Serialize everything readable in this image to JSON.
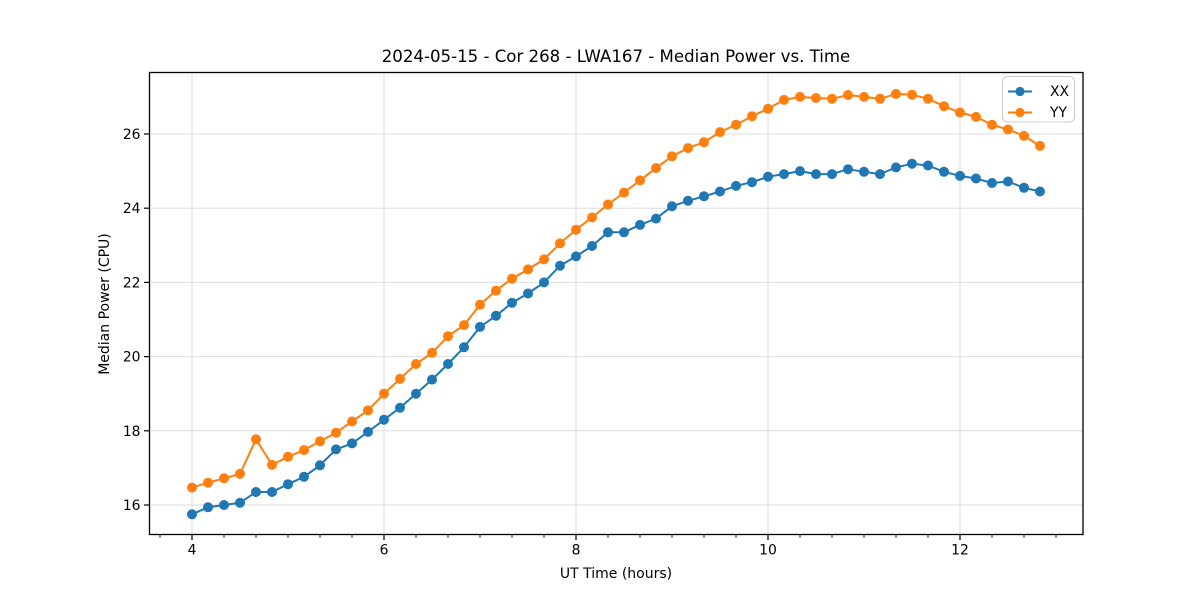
{
  "figure": {
    "title": "2024-05-15 - Cor 268 - LWA167 - Median Power vs. Time"
  },
  "chart_data": {
    "type": "line",
    "title": "2024-05-15 - Cor 268 - LWA167 - Median Power vs. Time",
    "xlabel": "UT Time (hours)",
    "ylabel": "Median Power (CPU)",
    "xlim": [
      3.558,
      13.275
    ],
    "ylim": [
      15.19,
      27.64
    ],
    "x_ticks": [
      4,
      6,
      8,
      10,
      12
    ],
    "y_ticks": [
      16,
      18,
      20,
      22,
      24,
      26
    ],
    "x_minor_step": 0.3333,
    "grid": true,
    "grid_color": "#dddddd",
    "background": "#ffffff",
    "legend_position": "upper right",
    "marker": "o",
    "x": [
      4.0,
      4.167,
      4.333,
      4.5,
      4.667,
      4.833,
      5.0,
      5.167,
      5.333,
      5.5,
      5.667,
      5.833,
      6.0,
      6.167,
      6.333,
      6.5,
      6.667,
      6.833,
      7.0,
      7.167,
      7.333,
      7.5,
      7.667,
      7.833,
      8.0,
      8.167,
      8.333,
      8.5,
      8.667,
      8.833,
      9.0,
      9.167,
      9.333,
      9.5,
      9.667,
      9.833,
      10.0,
      10.167,
      10.333,
      10.5,
      10.667,
      10.833,
      11.0,
      11.167,
      11.333,
      11.5,
      11.667,
      11.833,
      12.0,
      12.167,
      12.333,
      12.5,
      12.667,
      12.833
    ],
    "series": [
      {
        "name": "XX",
        "color": "#1f77b4",
        "values": [
          15.75,
          15.94,
          16.0,
          16.06,
          16.35,
          16.35,
          16.56,
          16.76,
          17.07,
          17.5,
          17.66,
          17.97,
          18.3,
          18.62,
          19.0,
          19.38,
          19.8,
          20.25,
          20.8,
          21.1,
          21.45,
          21.7,
          22.0,
          22.45,
          22.7,
          22.98,
          23.35,
          23.35,
          23.55,
          23.72,
          24.05,
          24.2,
          24.32,
          24.45,
          24.6,
          24.7,
          24.85,
          24.92,
          25.0,
          24.92,
          24.92,
          25.05,
          24.98,
          24.92,
          25.1,
          25.2,
          25.15,
          24.98,
          24.87,
          24.8,
          24.68,
          24.72,
          24.55,
          24.45
        ]
      },
      {
        "name": "YY",
        "color": "#ff7f0e",
        "values": [
          16.47,
          16.6,
          16.72,
          16.84,
          17.77,
          17.08,
          17.3,
          17.48,
          17.72,
          17.95,
          18.25,
          18.55,
          19.0,
          19.4,
          19.8,
          20.1,
          20.55,
          20.85,
          21.4,
          21.78,
          22.1,
          22.35,
          22.62,
          23.05,
          23.42,
          23.75,
          24.1,
          24.42,
          24.75,
          25.08,
          25.4,
          25.62,
          25.78,
          26.05,
          26.25,
          26.48,
          26.68,
          26.92,
          27.0,
          26.97,
          26.95,
          27.05,
          27.0,
          26.95,
          27.08,
          27.06,
          26.95,
          26.75,
          26.58,
          26.46,
          26.25,
          26.12,
          25.95,
          25.68
        ]
      }
    ]
  }
}
